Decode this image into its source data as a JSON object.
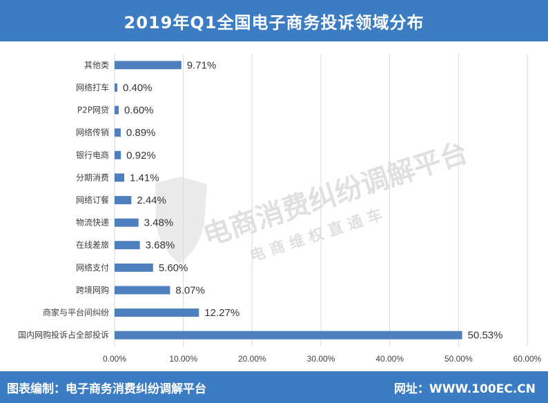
{
  "header": {
    "title": "2019年Q1全国电子商务投诉领域分布"
  },
  "footer": {
    "left": "图表编制：电子商务消费纠纷调解平台",
    "right": "网址：WWW.100EC.CN"
  },
  "watermark": {
    "line1": "电商消费纠纷调解平台",
    "line2": "电 商 维 权 直 通 车"
  },
  "colors": {
    "bar": "#4f7fbf",
    "header": "#3c7cc3",
    "grid": "#d9d9d9"
  },
  "chart_data": {
    "type": "bar",
    "orientation": "horizontal",
    "title": "2019年Q1全国电子商务投诉领域分布",
    "xlabel": "",
    "ylabel": "",
    "xlim": [
      0,
      60
    ],
    "x_ticks": [
      "0.00%",
      "10.00%",
      "20.00%",
      "30.00%",
      "40.00%",
      "50.00%",
      "60.00%"
    ],
    "grid": true,
    "categories": [
      "其他类",
      "网络打车",
      "P2P网贷",
      "网络传销",
      "银行电商",
      "分期消费",
      "网络订餐",
      "物流快递",
      "在线差旅",
      "网络支付",
      "跨境网购",
      "商家与平台间纠纷",
      "国内网购投诉占全部投诉"
    ],
    "values": [
      9.71,
      0.4,
      0.6,
      0.89,
      0.92,
      1.41,
      2.44,
      3.48,
      3.68,
      5.6,
      8.07,
      12.27,
      50.53
    ],
    "value_labels": [
      "9.71%",
      "0.40%",
      "0.60%",
      "0.89%",
      "0.92%",
      "1.41%",
      "2.44%",
      "3.48%",
      "3.68%",
      "5.60%",
      "8.07%",
      "12.27%",
      "50.53%"
    ]
  }
}
